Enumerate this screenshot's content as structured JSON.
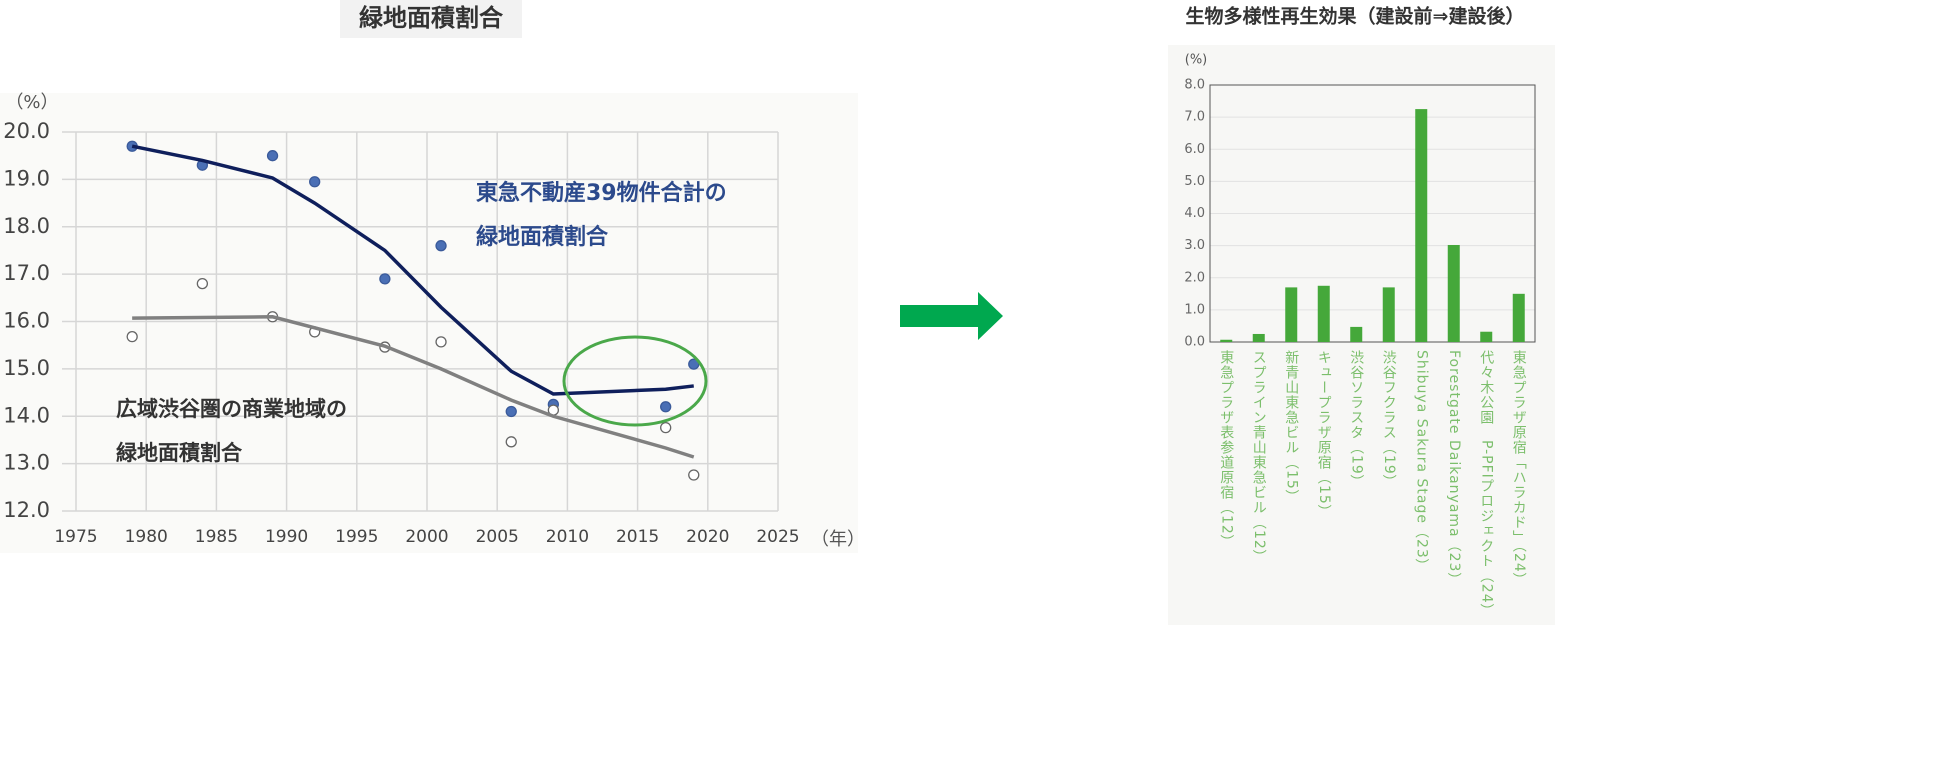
{
  "chart_data": [
    {
      "type": "line",
      "title": "緑地面積割合",
      "ylabel": "（%）",
      "xlabel": "（年）",
      "xlim": [
        1975,
        2025
      ],
      "xticks": [
        1975,
        1980,
        1985,
        1990,
        1995,
        2000,
        2005,
        2010,
        2015,
        2020,
        2025
      ],
      "ylim": [
        12,
        20
      ],
      "yticks": [
        {
          "value": 12,
          "label": "12.0"
        },
        {
          "value": 13,
          "label": "13.0"
        },
        {
          "value": 14,
          "label": "14.0"
        },
        {
          "value": 15,
          "label": "15.0"
        },
        {
          "value": 16,
          "label": "16.0"
        },
        {
          "value": 17,
          "label": "17.0"
        },
        {
          "value": 18,
          "label": "18.0"
        },
        {
          "value": 19,
          "label": "19.0"
        },
        {
          "value": 20,
          "label": "20.0"
        }
      ],
      "grid": true,
      "series": [
        {
          "marker": "filled",
          "color": "#4a6fb5",
          "x": [
            1979,
            1984,
            1989,
            1992,
            1997,
            2001,
            2006,
            2009,
            2017,
            2019
          ],
          "values": [
            19.7,
            19.3,
            19.5,
            18.95,
            16.9,
            17.6,
            14.1,
            14.25,
            14.2,
            15.1
          ]
        },
        {
          "marker": "none",
          "color": "#0f1f5c",
          "x": [
            1979,
            1984,
            1989,
            1992,
            1997,
            2001,
            2006,
            2009,
            2017,
            2019
          ],
          "values": [
            19.7,
            19.4,
            19.03,
            18.5,
            17.5,
            16.3,
            14.95,
            14.47,
            14.57,
            14.64
          ]
        },
        {
          "marker": "open",
          "color": "#666666",
          "x": [
            1979,
            1984,
            1989,
            1992,
            1997,
            2001,
            2006,
            2009,
            2017,
            2019
          ],
          "values": [
            15.68,
            16.8,
            16.1,
            15.78,
            15.46,
            15.57,
            13.46,
            14.13,
            13.76,
            12.76
          ]
        },
        {
          "marker": "none",
          "color": "#808080",
          "x": [
            1979,
            1989,
            1997,
            2001,
            2006,
            2009,
            2017,
            2019
          ],
          "values": [
            16.07,
            16.1,
            15.48,
            15.0,
            14.34,
            14.0,
            13.33,
            13.14
          ]
        }
      ],
      "annotations": [
        {
          "text": [
            "東急不動産39物件合計の",
            "緑地面積割合"
          ],
          "color": "#2c4a8c"
        },
        {
          "text": [
            "広域渋谷圏の商業地域の",
            "緑地面積割合"
          ],
          "color": "#333333"
        }
      ]
    },
    {
      "type": "bar",
      "title": "生物多様性再生効果（建設前⇒建設後）",
      "ylabel": "(%)",
      "ylim": [
        0,
        8
      ],
      "yticks": [
        {
          "value": 0,
          "label": "0.0"
        },
        {
          "value": 1,
          "label": "1.0"
        },
        {
          "value": 2,
          "label": "2.0"
        },
        {
          "value": 3,
          "label": "3.0"
        },
        {
          "value": 4,
          "label": "4.0"
        },
        {
          "value": 5,
          "label": "5.0"
        },
        {
          "value": 6,
          "label": "6.0"
        },
        {
          "value": 7,
          "label": "7.0"
        },
        {
          "value": 8,
          "label": "8.0"
        }
      ],
      "grid": true,
      "color": "#45a83a",
      "categories": [
        "東急プラザ表参道原宿（12）",
        "スプライン青山東急ビル（12）",
        "新青山東急ビル（15）",
        "キュープラザ原宿（15）",
        "渋谷ソラスタ（19）",
        "渋谷フクラス（19）",
        "Shibuya Sakura Stage（23）",
        "Forestgate Daikanyama（23）",
        "代々木公園　P-PFIプロジェクト（24）",
        "東急プラザ原宿「ハラカド」（24）"
      ],
      "values": [
        0.07,
        0.25,
        1.7,
        1.75,
        0.47,
        1.7,
        7.25,
        3.02,
        0.32,
        1.5
      ]
    }
  ]
}
